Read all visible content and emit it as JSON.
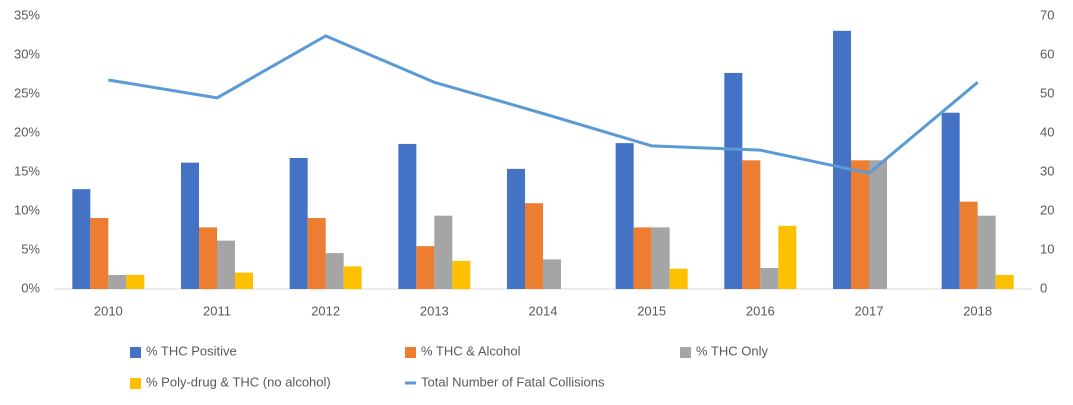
{
  "chart_data": {
    "type": "bar",
    "categories": [
      "2010",
      "2011",
      "2012",
      "2013",
      "2014",
      "2015",
      "2016",
      "2017",
      "2018"
    ],
    "series": [
      {
        "name": "% THC Positive",
        "color": "#4472c4",
        "values": [
          12.8,
          16.2,
          16.8,
          18.6,
          15.4,
          18.7,
          27.7,
          33.1,
          22.6
        ]
      },
      {
        "name": "% THC & Alcohol",
        "color": "#ed7d31",
        "values": [
          9.1,
          7.9,
          9.1,
          5.5,
          11.0,
          7.9,
          16.5,
          16.5,
          11.2
        ]
      },
      {
        "name": "% THC Only",
        "color": "#a5a5a5",
        "values": [
          1.8,
          6.2,
          4.6,
          9.4,
          3.8,
          7.9,
          2.7,
          16.5,
          9.4
        ]
      },
      {
        "name": "% Poly-drug & THC (no alcohol)",
        "color": "#ffc000",
        "values": [
          1.8,
          2.1,
          2.9,
          3.6,
          null,
          2.6,
          8.1,
          null,
          1.8
        ]
      },
      {
        "name": "Total Number of Fatal Collisions",
        "color": "#5b9bd5",
        "type": "line",
        "axis": "y2",
        "values": [
          53.6,
          49,
          64.9,
          53,
          45,
          36.7,
          35.6,
          29.7,
          53
        ]
      }
    ],
    "ylim": [
      0,
      35
    ],
    "yticks": [
      {
        "value": 0,
        "label": "0%"
      },
      {
        "value": 5,
        "label": "5%"
      },
      {
        "value": 10,
        "label": "10%"
      },
      {
        "value": 15,
        "label": "15%"
      },
      {
        "value": 20,
        "label": "20%"
      },
      {
        "value": 25,
        "label": "25%"
      },
      {
        "value": 30,
        "label": "30%"
      },
      {
        "value": 35,
        "label": "35%"
      }
    ],
    "y2lim": [
      0,
      70
    ],
    "y2ticks": [
      0,
      10,
      20,
      30,
      40,
      50,
      60,
      70
    ],
    "grid": false
  }
}
